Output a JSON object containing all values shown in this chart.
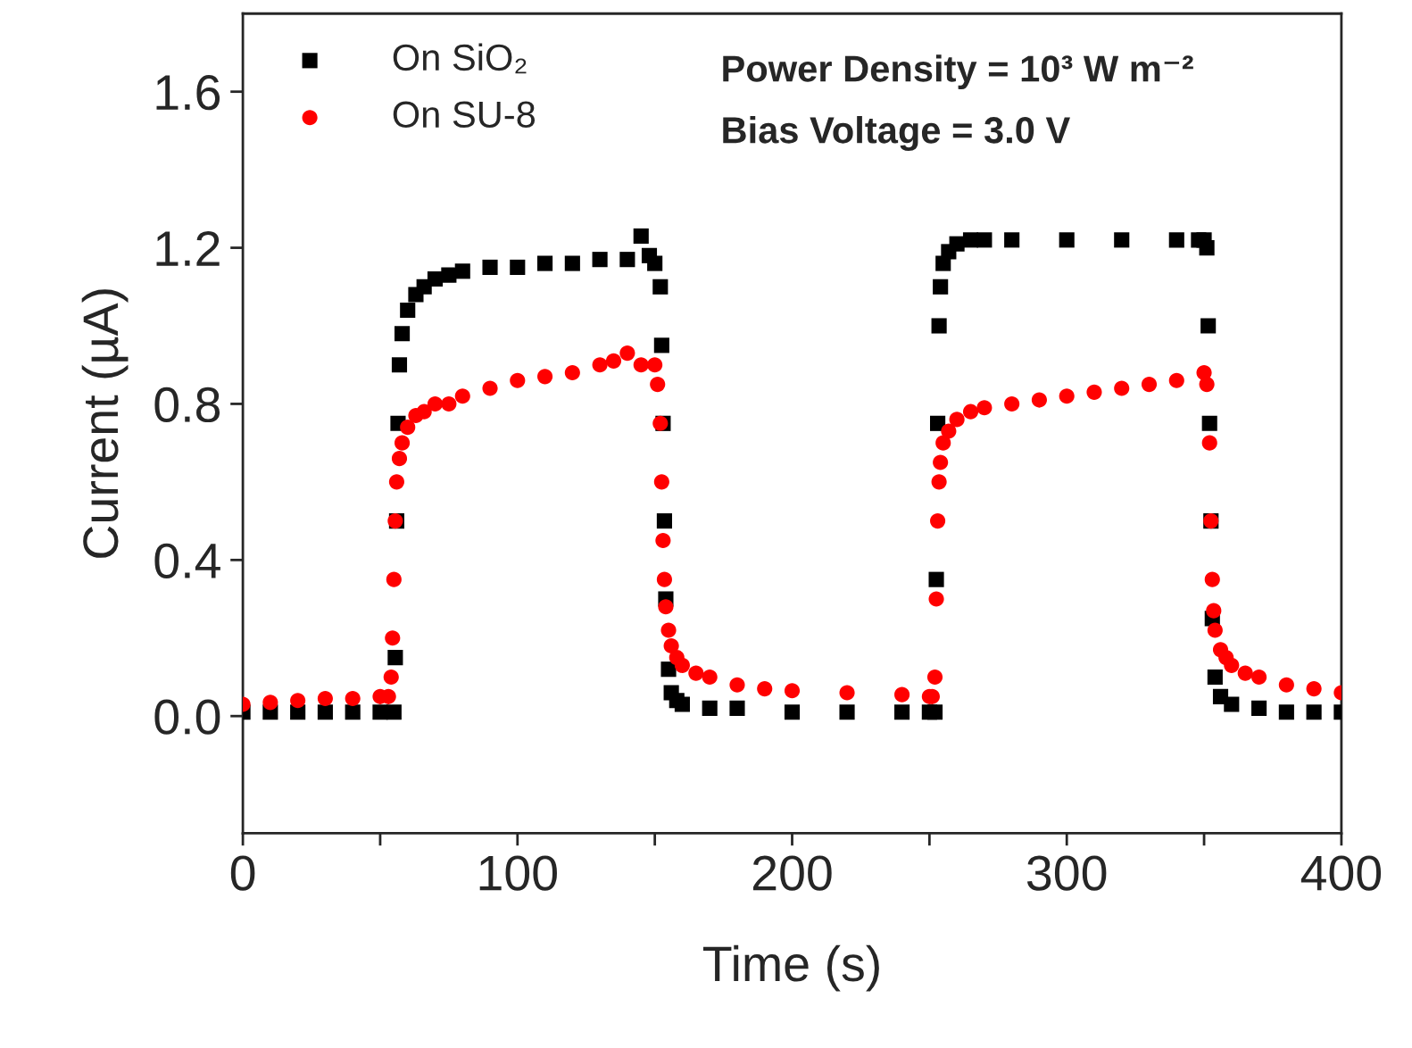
{
  "chart_data": {
    "type": "scatter",
    "xlabel": "Time (s)",
    "ylabel": "Current (µA)",
    "xlim": [
      0,
      400
    ],
    "ylim": [
      -0.3,
      1.8
    ],
    "xticks": [
      0,
      {
        "value": 50,
        "label": null
      },
      100,
      {
        "value": 150,
        "label": null
      },
      200,
      {
        "value": 250,
        "label": null
      },
      300,
      {
        "value": 350,
        "label": null
      },
      400
    ],
    "yticks": [
      {
        "value": 0,
        "label": "0.0"
      },
      0.4,
      0.8,
      1.2,
      1.6
    ],
    "grid": false,
    "legend": "top left",
    "annotations": [
      "Power Density = 10³ W m⁻²",
      "Bias Voltage = 3.0 V"
    ],
    "series": [
      {
        "name": "On SiO₂",
        "color": "#000000",
        "marker": "square",
        "x": [
          0,
          10,
          20,
          30,
          40,
          50,
          55,
          55.5,
          56,
          56.5,
          57,
          58,
          60,
          63,
          66,
          70,
          75,
          80,
          90,
          100,
          110,
          120,
          130,
          140,
          145,
          148,
          150,
          152,
          152.5,
          153,
          153.5,
          154,
          155,
          156,
          158,
          160,
          170,
          180,
          200,
          220,
          240,
          250,
          252,
          252.5,
          253,
          253.5,
          254,
          255,
          257,
          260,
          265,
          270,
          280,
          300,
          320,
          340,
          348,
          350,
          351,
          351.5,
          352,
          352.5,
          353,
          354,
          356,
          360,
          370,
          380,
          390,
          400
        ],
        "values": [
          0.01,
          0.01,
          0.01,
          0.01,
          0.01,
          0.01,
          0.01,
          0.15,
          0.5,
          0.75,
          0.9,
          0.98,
          1.04,
          1.08,
          1.1,
          1.12,
          1.13,
          1.14,
          1.15,
          1.15,
          1.16,
          1.16,
          1.17,
          1.17,
          1.23,
          1.18,
          1.16,
          1.1,
          0.95,
          0.75,
          0.5,
          0.3,
          0.12,
          0.06,
          0.04,
          0.03,
          0.02,
          0.02,
          0.01,
          0.01,
          0.01,
          0.01,
          0.01,
          0.35,
          0.75,
          1.0,
          1.1,
          1.16,
          1.19,
          1.21,
          1.22,
          1.22,
          1.22,
          1.22,
          1.22,
          1.22,
          1.22,
          1.22,
          1.2,
          1.0,
          0.75,
          0.5,
          0.25,
          0.1,
          0.05,
          0.03,
          0.02,
          0.01,
          0.01,
          0.01
        ]
      },
      {
        "name": "On SU-8",
        "color": "#ff0000",
        "marker": "circle",
        "x": [
          0,
          10,
          20,
          30,
          40,
          50,
          53,
          54,
          54.5,
          55,
          55.5,
          56,
          57,
          58,
          60,
          63,
          66,
          70,
          75,
          80,
          90,
          100,
          110,
          120,
          130,
          135,
          140,
          145,
          150,
          151,
          152,
          152.5,
          153,
          153.5,
          154,
          155,
          156,
          158,
          160,
          165,
          170,
          180,
          190,
          200,
          220,
          240,
          250,
          251,
          252,
          252.5,
          253,
          253.5,
          254,
          255,
          257,
          260,
          265,
          270,
          280,
          290,
          300,
          310,
          320,
          330,
          340,
          350,
          351,
          352,
          352.5,
          353,
          353.5,
          354,
          356,
          358,
          360,
          365,
          370,
          380,
          390,
          400
        ],
        "values": [
          0.03,
          0.035,
          0.04,
          0.045,
          0.045,
          0.05,
          0.05,
          0.1,
          0.2,
          0.35,
          0.5,
          0.6,
          0.66,
          0.7,
          0.74,
          0.77,
          0.78,
          0.8,
          0.8,
          0.82,
          0.84,
          0.86,
          0.87,
          0.88,
          0.9,
          0.91,
          0.93,
          0.9,
          0.9,
          0.85,
          0.75,
          0.6,
          0.45,
          0.35,
          0.28,
          0.22,
          0.18,
          0.15,
          0.13,
          0.11,
          0.1,
          0.08,
          0.07,
          0.065,
          0.06,
          0.055,
          0.05,
          0.05,
          0.1,
          0.3,
          0.5,
          0.6,
          0.65,
          0.7,
          0.73,
          0.76,
          0.78,
          0.79,
          0.8,
          0.81,
          0.82,
          0.83,
          0.84,
          0.85,
          0.86,
          0.88,
          0.85,
          0.7,
          0.5,
          0.35,
          0.27,
          0.22,
          0.17,
          0.15,
          0.13,
          0.11,
          0.1,
          0.08,
          0.07,
          0.06
        ]
      }
    ]
  }
}
